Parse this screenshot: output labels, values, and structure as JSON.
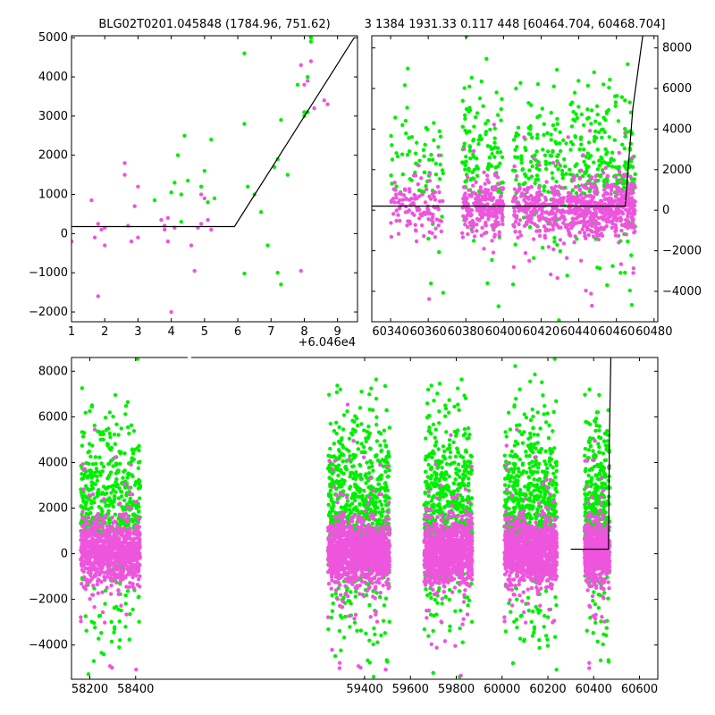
{
  "titles": {
    "left": "BLG02T0201.045848 (1784.96, 751.62)",
    "right": "3 1384 1931.33 0.117 448 [60464.704, 60468.704]"
  },
  "colors": {
    "series_a": "#00ee00",
    "series_b": "#ee55dd",
    "model": "#000000"
  },
  "chart_data": [
    {
      "id": "zoom",
      "type": "scatter",
      "xlim": [
        1,
        9.6
      ],
      "ylim": [
        -2250,
        5050
      ],
      "x_offset_label": "+6.046e4",
      "xticks": [
        1,
        2,
        3,
        4,
        5,
        6,
        7,
        8,
        9
      ],
      "yticks": [
        -2000,
        -1000,
        0,
        1000,
        2000,
        3000,
        4000,
        5000
      ],
      "model": {
        "x": [
          1,
          5.9,
          9.5
        ],
        "y": [
          180,
          180,
          5000
        ]
      },
      "series": [
        {
          "name": "",
          "color": "#00ee00",
          "points": [
            [
              4.0,
              1050
            ],
            [
              4.1,
              1300
            ],
            [
              4.2,
              2000
            ],
            [
              4.3,
              1000
            ],
            [
              4.4,
              2500
            ],
            [
              4.5,
              1350
            ],
            [
              4.9,
              1200
            ],
            [
              5.0,
              1600
            ],
            [
              5.1,
              800
            ],
            [
              5.2,
              2400
            ],
            [
              5.3,
              900
            ],
            [
              6.2,
              4600
            ],
            [
              6.2,
              2800
            ],
            [
              6.3,
              1200
            ],
            [
              6.5,
              1000
            ],
            [
              6.7,
              550
            ],
            [
              6.9,
              -300
            ],
            [
              7.1,
              1700
            ],
            [
              7.2,
              1900
            ],
            [
              7.2,
              -1000
            ],
            [
              7.3,
              2900
            ],
            [
              7.3,
              -1300
            ],
            [
              7.5,
              1500
            ],
            [
              7.8,
              3800
            ],
            [
              8.0,
              3100
            ],
            [
              8.0,
              3000
            ],
            [
              8.1,
              4000
            ],
            [
              8.1,
              3100
            ],
            [
              8.2,
              5000
            ],
            [
              8.2,
              4900
            ],
            [
              6.2,
              -1020
            ],
            [
              3.5,
              850
            ],
            [
              4.3,
              300
            ]
          ]
        },
        {
          "name": "",
          "color": "#ee55dd",
          "points": [
            [
              1.0,
              -200
            ],
            [
              1.6,
              850
            ],
            [
              1.7,
              -100
            ],
            [
              1.8,
              -1600
            ],
            [
              1.8,
              250
            ],
            [
              1.9,
              100
            ],
            [
              2.0,
              -300
            ],
            [
              2.6,
              1800
            ],
            [
              2.6,
              1500
            ],
            [
              2.7,
              200
            ],
            [
              2.8,
              -200
            ],
            [
              2.9,
              700
            ],
            [
              3.0,
              1200
            ],
            [
              3.0,
              -100
            ],
            [
              3.7,
              350
            ],
            [
              3.8,
              200
            ],
            [
              3.9,
              -200
            ],
            [
              3.9,
              400
            ],
            [
              4.0,
              -2000
            ],
            [
              4.1,
              150
            ],
            [
              4.6,
              -300
            ],
            [
              4.7,
              -950
            ],
            [
              4.8,
              150
            ],
            [
              4.9,
              1000
            ],
            [
              5.0,
              900
            ],
            [
              5.1,
              350
            ],
            [
              5.2,
              100
            ],
            [
              7.9,
              4300
            ],
            [
              8.0,
              3800
            ],
            [
              8.1,
              3900
            ],
            [
              8.2,
              4400
            ],
            [
              8.3,
              3200
            ],
            [
              8.6,
              3400
            ],
            [
              8.7,
              3300
            ],
            [
              7.9,
              -950
            ],
            [
              2.0,
              150
            ],
            [
              3.8,
              100
            ],
            [
              4.9,
              250
            ]
          ]
        }
      ]
    },
    {
      "id": "season",
      "type": "scatter",
      "xlim": [
        60330,
        60482
      ],
      "ylim": [
        -5500,
        8600
      ],
      "xticks": [
        60340,
        60360,
        60380,
        60400,
        60420,
        60440,
        60460,
        60480
      ],
      "yticks": [
        -4000,
        -2000,
        0,
        2000,
        4000,
        6000,
        8000
      ],
      "model": {
        "x": [
          60330,
          60464.7,
          60468.7,
          60474
        ],
        "y": [
          200,
          200,
          5000,
          8600
        ]
      },
      "clusters": [
        {
          "x": [
            60340,
            60368
          ],
          "n": 120
        },
        {
          "x": [
            60378,
            60400
          ],
          "n": 240
        },
        {
          "x": [
            60405,
            60440
          ],
          "n": 330
        },
        {
          "x": [
            60440,
            60465
          ],
          "n": 320
        },
        {
          "x": [
            60465,
            60470
          ],
          "n": 80
        }
      ]
    },
    {
      "id": "full",
      "type": "scatter",
      "xlim": [
        58120,
        60680
      ],
      "ylim": [
        -5500,
        8600
      ],
      "xticks": [
        58200,
        58400,
        59400,
        59600,
        59800,
        60000,
        60200,
        60400,
        60600
      ],
      "yticks": [
        -4000,
        -2000,
        0,
        2000,
        4000,
        6000,
        8000
      ],
      "model": {
        "x": [
          60300,
          60464.7,
          60468.7,
          60475
        ],
        "y": [
          200,
          200,
          5000,
          8600
        ]
      },
      "clusters": [
        {
          "x": [
            58160,
            58420
          ],
          "n": 900
        },
        {
          "x": [
            59240,
            59510
          ],
          "n": 1200
        },
        {
          "x": [
            59660,
            59870
          ],
          "n": 950
        },
        {
          "x": [
            60010,
            60240
          ],
          "n": 1100
        },
        {
          "x": [
            60360,
            60470
          ],
          "n": 600
        }
      ]
    }
  ]
}
